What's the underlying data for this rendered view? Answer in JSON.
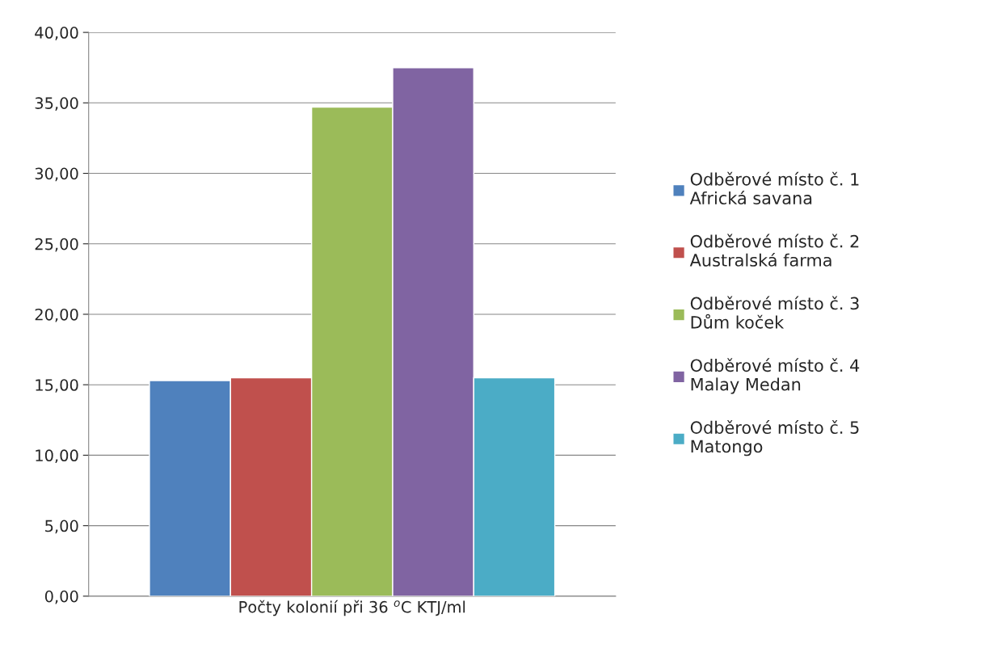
{
  "chart_data": {
    "type": "bar",
    "categories": [
      "Počty kolonií při 36 $^{o}$C KTJ/ml"
    ],
    "series": [
      {
        "name": "Odběrové místo č. 1\nAfrická savana",
        "color": "#4f81bd",
        "values": [
          15.3
        ]
      },
      {
        "name": "Odběrové místo č. 2\nAustralská farma",
        "color": "#c0504d",
        "values": [
          15.5
        ]
      },
      {
        "name": "Odběrové místo č. 3\nDům koček",
        "color": "#9bbb59",
        "values": [
          34.7
        ]
      },
      {
        "name": "Odběrové místo č. 4\nMalay Medan",
        "color": "#8064a2",
        "values": [
          37.5
        ]
      },
      {
        "name": "Odběrové místo č. 5\nMatongo",
        "color": "#4bacc6",
        "values": [
          15.5
        ]
      }
    ],
    "ylim": [
      0,
      40
    ],
    "yticks": [
      {
        "value": 0,
        "label": "0,00"
      },
      {
        "value": 5,
        "label": "5,00"
      },
      {
        "value": 10,
        "label": "10,00"
      },
      {
        "value": 15,
        "label": "15,00"
      },
      {
        "value": 20,
        "label": "20,00"
      },
      {
        "value": 25,
        "label": "25,00"
      },
      {
        "value": 30,
        "label": "30,00"
      },
      {
        "value": 35,
        "label": "35,00"
      },
      {
        "value": 40,
        "label": "40,00"
      }
    ],
    "grid": "y",
    "legend": "right"
  }
}
